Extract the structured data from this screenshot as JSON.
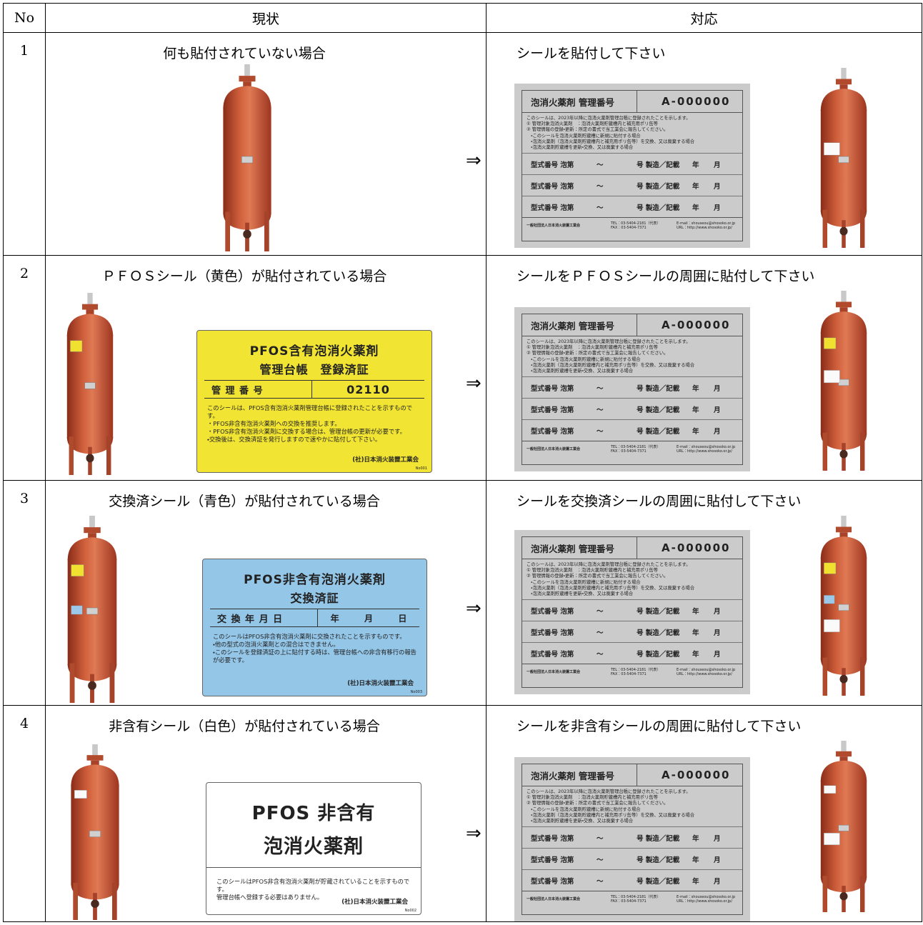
{
  "header": {
    "no": "No",
    "current": "現状",
    "action": "対応"
  },
  "arrow": "⇒",
  "rows": [
    {
      "no": "1",
      "current": "何も貼付されていない場合",
      "action": "シールを貼付して下さい"
    },
    {
      "no": "2",
      "current": "ＰＦＯＳシール（黄色）が貼付されている場合",
      "action": "シールをＰＦＯＳシールの周囲に貼付して下さい",
      "seal": {
        "title1": "PFOS含有泡消火薬剤",
        "title2": "管理台帳　登録済証",
        "field": "管 理 番 号",
        "number": "02110",
        "lines": [
          "このシールは、PFOS含有泡消火薬剤管理台帳に登録されたことを示すものです。",
          "・PFOS非含有泡消火薬剤への交換を推奨します。",
          "・PFOS非含有泡消火薬剤に交換する場合は、管理台帳の更新が必要です。",
          "・交換後は、交換済証を発行しますので速やかに貼付して下さい。"
        ],
        "issuer": "(社)日本消火装置工業会",
        "code": "No001"
      }
    },
    {
      "no": "3",
      "current": "交換済シール（青色）が貼付されている場合",
      "action": "シールを交換済シールの周囲に貼付して下さい",
      "seal": {
        "title1": "PFOS非含有泡消火薬剤",
        "title2": "交換済証",
        "field": "交 換 年 月 日",
        "date": [
          "年",
          "月",
          "日"
        ],
        "lines": [
          "このシールはPFOS非含有泡消火薬剤に交換されたことを示すものです。",
          "・他の型式の泡消火薬剤との混合はできません。",
          "・このシールを登録済証の上に貼付する時は、管理台帳への非含有移行の報告が必要です。"
        ],
        "issuer": "(社)日本消火装置工業会",
        "code": "No003"
      }
    },
    {
      "no": "4",
      "current": "非含有シール（白色）が貼付されている場合",
      "action": "シールを非含有シールの周囲に貼付して下さい",
      "seal": {
        "title1": "PFOS 非含有",
        "title2": "泡消火薬剤",
        "lines": [
          "このシールはPFOS非含有泡消火薬剤が貯蔵されていることを示すものです。",
          "管理台帳へ登録する必要はありません。"
        ],
        "issuer": "(社)日本消火装置工業会",
        "code": "No002"
      }
    }
  ],
  "registration_seal": {
    "title": "泡消火薬剤 管理番号",
    "number": "A-000000",
    "lines": [
      "このシールは、2023年以降に泡消火薬剤管理台帳に登録されたことを示します。",
      "① 管理対象泡消火薬剤　：泡消火薬剤貯蔵槽内と補充用ポリ缶等",
      "② 管理情報の登録・更新：所定の書式で当工業会に報告してください。",
      "　・このシールを泡消火薬剤貯蔵槽に新規に貼付する場合",
      "　・泡消火薬剤（泡消火薬剤貯蔵槽内と補充用ポリ缶等）を交換、又は廃棄する場合",
      "　・泡消火薬剤貯蔵槽を更新・交換、又は廃棄する場合"
    ],
    "record": {
      "model": "型式番号 泡第",
      "tilde": "～",
      "made": "号 製造／記載",
      "year": "年",
      "month": "月"
    },
    "footer": {
      "org": "一般社団法人日本消火装置工業会",
      "tel": "TEL：03-5404-2181（代表）",
      "fax": "FAX：03-5404-7371",
      "mail": "E-mail：shouseou@shosoko.or.jp",
      "url": "URL：http://www.shosoko.or.jp/"
    }
  }
}
